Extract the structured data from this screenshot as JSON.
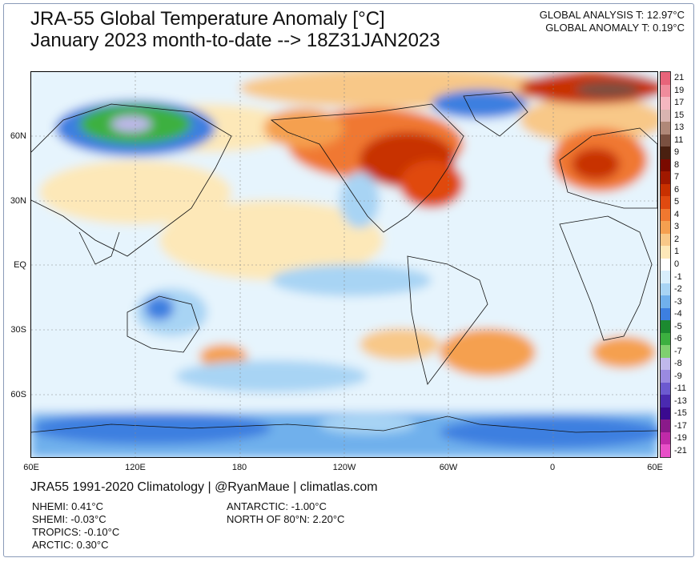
{
  "title_line1": "JRA-55 Global Temperature Anomaly [°C]",
  "title_line2": "January 2023 month-to-date --> 18Z31JAN2023",
  "global_analysis": "GLOBAL ANALYSIS T: 12.97°C",
  "global_anomaly": "GLOBAL ANOMALY T: 0.19°C",
  "lat_labels": [
    "60N",
    "30N",
    "EQ",
    "30S",
    "60S"
  ],
  "lon_labels": [
    "60E",
    "120E",
    "180",
    "120W",
    "60W",
    "0",
    "60E"
  ],
  "legend": {
    "labels": [
      "21",
      "19",
      "17",
      "15",
      "13",
      "11",
      "9",
      "8",
      "7",
      "6",
      "5",
      "4",
      "3",
      "2",
      "1",
      "0",
      "-1",
      "-2",
      "-3",
      "-4",
      "-5",
      "-6",
      "-7",
      "-8",
      "-9",
      "-11",
      "-13",
      "-15",
      "-17",
      "-19",
      "-21"
    ],
    "colors": [
      "#e8647a",
      "#f08c9c",
      "#f5b7c0",
      "#d9b4b0",
      "#b08878",
      "#7a5040",
      "#4a2010",
      "#7a0a00",
      "#a01800",
      "#c83000",
      "#e04a10",
      "#f07830",
      "#f5a050",
      "#f8c888",
      "#fde8b8",
      "#ffffff",
      "#d8eefc",
      "#a8d4f4",
      "#70b0ec",
      "#3d7fe0",
      "#1c8a30",
      "#3cb040",
      "#7fd070",
      "#c0b8ec",
      "#9a8ae0",
      "#6c5ad0",
      "#4a2ab0",
      "#3a0a90",
      "#8a1a8a",
      "#c02aa8",
      "#e850c8"
    ]
  },
  "footer": "JRA55 1991-2020 Climatology | @RyanMaue | climatlas.com",
  "stats": {
    "nhemi": "NHEMI: 0.41°C",
    "shemi": "SHEMI: -0.03°C",
    "tropics": "TROPICS: -0.10°C",
    "arctic": "ARCTIC: 0.30°C",
    "antarctic": "ANTARCTIC: -1.00°C",
    "north80": "NORTH OF 80°N: 2.20°C"
  }
}
